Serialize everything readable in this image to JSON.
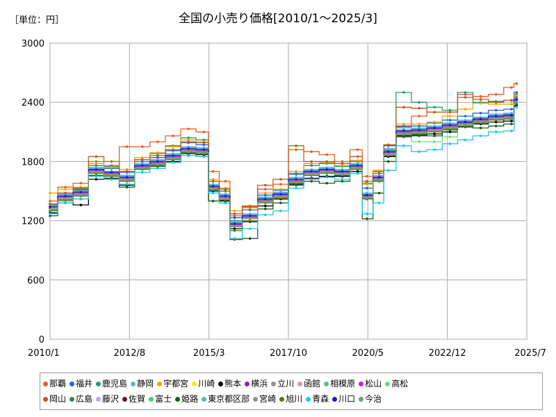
{
  "unit_label": "［単位：円］",
  "chart_data": {
    "type": "line",
    "title": "全国の小売り価格[2010/1〜2025/3]",
    "xlabel": "",
    "ylabel": "",
    "x_range": [
      2010.0,
      2025.5
    ],
    "ylim": [
      0,
      3000
    ],
    "y_ticks": [
      0,
      600,
      1200,
      1800,
      2400,
      3000
    ],
    "y_tick_labels": [
      "0",
      "600",
      "1200",
      "1800",
      "2400",
      "3000"
    ],
    "x_ticks": [
      2010.0,
      2012.583,
      2015.167,
      2017.75,
      2020.333,
      2022.917,
      2025.5
    ],
    "x_tick_labels": [
      "2010/1",
      "2012/8",
      "2015/3",
      "2017/10",
      "2020/5",
      "2022/12",
      "2025/7"
    ],
    "grid": true,
    "legend_position": "bottom",
    "base_x": [
      2010.0,
      2010.5,
      2011.0,
      2011.5,
      2012.0,
      2012.5,
      2013.0,
      2013.5,
      2014.0,
      2014.5,
      2015.0,
      2015.3,
      2015.7,
      2016.0,
      2016.5,
      2017.0,
      2017.5,
      2018.0,
      2018.5,
      2019.0,
      2019.5,
      2020.0,
      2020.3,
      2020.7,
      2021.0,
      2021.5,
      2022.0,
      2022.5,
      2023.0,
      2023.5,
      2024.0,
      2024.5,
      2025.0,
      2025.17
    ],
    "base_values": [
      1330,
      1450,
      1490,
      1720,
      1690,
      1640,
      1760,
      1800,
      1860,
      1930,
      1920,
      1550,
      1450,
      1170,
      1250,
      1420,
      1470,
      1620,
      1700,
      1720,
      1700,
      1760,
      1460,
      1640,
      1900,
      2110,
      2120,
      2140,
      2170,
      2200,
      2230,
      2260,
      2270,
      2430
    ],
    "series": [
      {
        "name": "那覇",
        "values": [
          1400,
          1540,
          1580,
          1800,
          1760,
          1950,
          1950,
          2000,
          2060,
          2130,
          2100,
          1700,
          1600,
          1250,
          1350,
          1520,
          1570,
          1920,
          1900,
          1870,
          1800,
          1920,
          1650,
          1700,
          1800,
          2150,
          2260,
          2300,
          2300,
          2480,
          2460,
          2480,
          2550,
          2590
        ]
      },
      {
        "name": "福井",
        "values": [
          1370,
          1480,
          1520,
          1760,
          1730,
          1690,
          1800,
          1840,
          1910,
          1990,
          1970,
          1600,
          1500,
          1230,
          1310,
          1460,
          1510,
          1670,
          1760,
          1780,
          1760,
          1810,
          1530,
          1700,
          1960,
          2160,
          2160,
          2190,
          2220,
          2260,
          2290,
          2320,
          2330,
          2500
        ]
      },
      {
        "name": "鹿児島",
        "values": [
          1360,
          1450,
          1510,
          1760,
          1750,
          1650,
          1820,
          1880,
          1960,
          2040,
          2020,
          1600,
          1500,
          1200,
          1270,
          1440,
          1480,
          1680,
          1760,
          1780,
          1750,
          1800,
          1580,
          1640,
          1920,
          2500,
          2400,
          2350,
          2320,
          2500,
          2400,
          2410,
          2420,
          2480
        ]
      },
      {
        "name": "静岡",
        "values": [
          1350,
          1470,
          1500,
          1740,
          1700,
          1660,
          1780,
          1820,
          1880,
          1950,
          1940,
          1570,
          1470,
          1190,
          1270,
          1440,
          1490,
          1640,
          1720,
          1740,
          1720,
          1780,
          1480,
          1660,
          1930,
          2140,
          2140,
          2160,
          2190,
          2220,
          2250,
          2280,
          2290,
          2460
        ]
      },
      {
        "name": "宇都宮",
        "values": [
          1480,
          1520,
          1540,
          1780,
          1740,
          1720,
          1840,
          1890,
          1950,
          2020,
          2000,
          1620,
          1530,
          1300,
          1330,
          1480,
          1520,
          1700,
          1780,
          1790,
          1760,
          1810,
          1570,
          1710,
          1970,
          2180,
          2180,
          2200,
          2260,
          2330,
          2390,
          2380,
          2380,
          2470
        ]
      },
      {
        "name": "川崎",
        "values": [
          1340,
          1460,
          1500,
          1730,
          1700,
          1650,
          1770,
          1810,
          1870,
          1940,
          1930,
          1560,
          1460,
          1180,
          1260,
          1430,
          1480,
          1630,
          1710,
          1730,
          1710,
          1770,
          1470,
          1650,
          1910,
          2120,
          2130,
          2150,
          2180,
          2210,
          2240,
          2270,
          2280,
          2440
        ]
      },
      {
        "name": "熊本",
        "values": [
          1280,
          1400,
          1360,
          1620,
          1630,
          1560,
          1730,
          1760,
          1800,
          1880,
          1870,
          1500,
          1400,
          1120,
          1190,
          1350,
          1420,
          1570,
          1630,
          1650,
          1650,
          1700,
          1420,
          1600,
          1850,
          2060,
          2070,
          2080,
          2100,
          2150,
          2180,
          2200,
          2210,
          2370
        ]
      },
      {
        "name": "横浜",
        "values": [
          1350,
          1460,
          1500,
          1730,
          1700,
          1650,
          1770,
          1810,
          1870,
          1940,
          1930,
          1560,
          1460,
          1180,
          1260,
          1430,
          1480,
          1630,
          1710,
          1730,
          1710,
          1770,
          1470,
          1650,
          1910,
          2120,
          2130,
          2150,
          2180,
          2210,
          2240,
          2270,
          2280,
          2440
        ]
      },
      {
        "name": "立川",
        "values": [
          1330,
          1450,
          1490,
          1720,
          1690,
          1640,
          1760,
          1800,
          1860,
          1930,
          1920,
          1550,
          1450,
          1170,
          1250,
          1420,
          1470,
          1620,
          1700,
          1720,
          1700,
          1760,
          1460,
          1640,
          1900,
          2110,
          2120,
          2140,
          2170,
          2200,
          2230,
          2260,
          2270,
          2430
        ]
      },
      {
        "name": "函館",
        "values": [
          1300,
          1400,
          1460,
          1690,
          1660,
          1610,
          1730,
          1770,
          1830,
          1900,
          1890,
          1520,
          1420,
          1150,
          1230,
          1400,
          1450,
          1600,
          1680,
          1700,
          1680,
          1740,
          1440,
          1620,
          1880,
          2090,
          2100,
          2120,
          2150,
          2180,
          2210,
          2240,
          2250,
          2410
        ]
      },
      {
        "name": "相模原",
        "values": [
          1340,
          1450,
          1490,
          1720,
          1690,
          1640,
          1760,
          1800,
          1860,
          1930,
          1920,
          1550,
          1450,
          1170,
          1250,
          1420,
          1470,
          1620,
          1700,
          1720,
          1700,
          1760,
          1460,
          1640,
          1900,
          2110,
          2120,
          2140,
          2170,
          2200,
          2230,
          2260,
          2270,
          2430
        ]
      },
      {
        "name": "松山",
        "values": [
          1320,
          1440,
          1480,
          1710,
          1680,
          1630,
          1750,
          1790,
          1850,
          1920,
          1910,
          1540,
          1440,
          1160,
          1240,
          1410,
          1460,
          1610,
          1690,
          1710,
          1690,
          1750,
          1450,
          1630,
          1890,
          2100,
          2110,
          2130,
          2160,
          2190,
          2220,
          2250,
          2260,
          2420
        ]
      },
      {
        "name": "高松",
        "values": [
          1310,
          1430,
          1470,
          1700,
          1670,
          1620,
          1740,
          1780,
          1840,
          1910,
          1900,
          1530,
          1430,
          1150,
          1230,
          1400,
          1450,
          1600,
          1680,
          1700,
          1680,
          1740,
          1440,
          1620,
          1880,
          2090,
          2000,
          2000,
          2050,
          2200,
          2200,
          2220,
          2230,
          2400
        ]
      },
      {
        "name": "岡山",
        "values": [
          1370,
          1480,
          1530,
          1850,
          1800,
          1700,
          1820,
          1860,
          1920,
          2000,
          1990,
          1600,
          1520,
          1270,
          1340,
          1560,
          1620,
          1960,
          1800,
          1800,
          1780,
          1850,
          1600,
          1680,
          1970,
          2350,
          2340,
          2300,
          2300,
          2450,
          2430,
          2400,
          2420,
          2450
        ]
      },
      {
        "name": "広島",
        "values": [
          1340,
          1460,
          1500,
          1730,
          1700,
          1650,
          1770,
          1810,
          1870,
          1940,
          1930,
          1560,
          1460,
          1180,
          1260,
          1430,
          1480,
          1630,
          1710,
          1730,
          1710,
          1770,
          1470,
          1650,
          1910,
          2120,
          2130,
          2150,
          2180,
          2210,
          2240,
          2270,
          2280,
          2440
        ]
      },
      {
        "name": "藤沢",
        "values": [
          1340,
          1450,
          1490,
          1720,
          1690,
          1640,
          1760,
          1800,
          1860,
          1930,
          1920,
          1550,
          1450,
          1170,
          1250,
          1420,
          1470,
          1620,
          1700,
          1720,
          1700,
          1760,
          1460,
          1640,
          1900,
          2110,
          2120,
          2140,
          2170,
          2200,
          2230,
          2260,
          2270,
          2430
        ]
      },
      {
        "name": "佐賀",
        "values": [
          1320,
          1430,
          1470,
          1700,
          1670,
          1620,
          1740,
          1780,
          1840,
          1910,
          1900,
          1530,
          1430,
          1150,
          1230,
          1400,
          1450,
          1600,
          1680,
          1700,
          1680,
          1740,
          1440,
          1620,
          1880,
          2090,
          2100,
          2120,
          2150,
          2180,
          2210,
          2240,
          2250,
          2410
        ]
      },
      {
        "name": "富士",
        "values": [
          1330,
          1450,
          1490,
          1720,
          1690,
          1640,
          1760,
          1800,
          1860,
          1930,
          1920,
          1550,
          1450,
          1170,
          1250,
          1420,
          1470,
          1620,
          1700,
          1720,
          1700,
          1760,
          1460,
          1640,
          1900,
          2110,
          2120,
          2140,
          2170,
          2200,
          2230,
          2260,
          2270,
          2430
        ]
      },
      {
        "name": "姫路",
        "values": [
          1250,
          1380,
          1420,
          1660,
          1620,
          1540,
          1730,
          1750,
          1790,
          1860,
          1850,
          1400,
          1380,
          1010,
          1020,
          1320,
          1380,
          1560,
          1600,
          1580,
          1600,
          1680,
          1220,
          1480,
          1800,
          2050,
          2060,
          2060,
          2120,
          2150,
          2140,
          2160,
          2180,
          2360
        ]
      },
      {
        "name": "東京都区部",
        "values": [
          1350,
          1460,
          1500,
          1730,
          1700,
          1650,
          1770,
          1810,
          1870,
          1940,
          1930,
          1560,
          1460,
          1180,
          1260,
          1430,
          1480,
          1630,
          1710,
          1730,
          1710,
          1770,
          1470,
          1650,
          1910,
          2120,
          2130,
          2150,
          2180,
          2210,
          2240,
          2270,
          2280,
          2440
        ]
      },
      {
        "name": "宮崎",
        "values": [
          1320,
          1430,
          1470,
          1700,
          1670,
          1620,
          1740,
          1780,
          1840,
          1910,
          1900,
          1530,
          1430,
          1150,
          1230,
          1400,
          1450,
          1600,
          1680,
          1700,
          1680,
          1740,
          1440,
          1620,
          1880,
          2090,
          2100,
          2120,
          2150,
          2180,
          2210,
          2240,
          2250,
          2410
        ]
      },
      {
        "name": "旭川",
        "values": [
          1300,
          1410,
          1450,
          1680,
          1650,
          1600,
          1720,
          1760,
          1820,
          1890,
          1880,
          1510,
          1410,
          1100,
          1200,
          1380,
          1430,
          1580,
          1660,
          1680,
          1660,
          1720,
          1420,
          1600,
          1860,
          2070,
          2080,
          2100,
          2130,
          2160,
          2190,
          2220,
          2230,
          2390
        ]
      },
      {
        "name": "青森",
        "values": [
          1270,
          1380,
          1420,
          1650,
          1620,
          1570,
          1690,
          1730,
          1790,
          1860,
          1850,
          1480,
          1380,
          1020,
          1120,
          1260,
          1300,
          1530,
          1620,
          1640,
          1620,
          1680,
          1270,
          1380,
          1710,
          1960,
          1900,
          1920,
          1980,
          2020,
          2060,
          2100,
          2110,
          2350
        ]
      },
      {
        "name": "川口",
        "values": [
          1340,
          1450,
          1490,
          1720,
          1690,
          1640,
          1760,
          1800,
          1860,
          1930,
          1920,
          1550,
          1450,
          1170,
          1250,
          1420,
          1470,
          1620,
          1700,
          1720,
          1700,
          1760,
          1460,
          1640,
          1900,
          2110,
          2120,
          2140,
          2170,
          2200,
          2230,
          2260,
          2270,
          2430
        ]
      },
      {
        "name": "今治",
        "values": [
          1310,
          1420,
          1460,
          1690,
          1660,
          1610,
          1730,
          1770,
          1830,
          1900,
          1890,
          1520,
          1420,
          1140,
          1220,
          1390,
          1440,
          1590,
          1670,
          1690,
          1670,
          1730,
          1430,
          1610,
          1870,
          2080,
          2090,
          2110,
          2140,
          2170,
          2200,
          2230,
          2240,
          2400
        ]
      }
    ],
    "series_colors": [
      "#ef5a1e",
      "#2461e0",
      "#1c9e6e",
      "#5ab4ea",
      "#f2a600",
      "#f3f000",
      "#000000",
      "#9b18b8",
      "#8d949a",
      "#c7a4a4",
      "#5ab8a6",
      "#c11ef0",
      "#63df6f",
      "#c7561e",
      "#2e8a43",
      "#b6a8e8",
      "#601a2a",
      "#35d86b",
      "#1a5b1a",
      "#56b8c6",
      "#a58a84",
      "#4e7a18",
      "#16c8ec",
      "#1a1acf",
      "#6aa06a"
    ]
  }
}
